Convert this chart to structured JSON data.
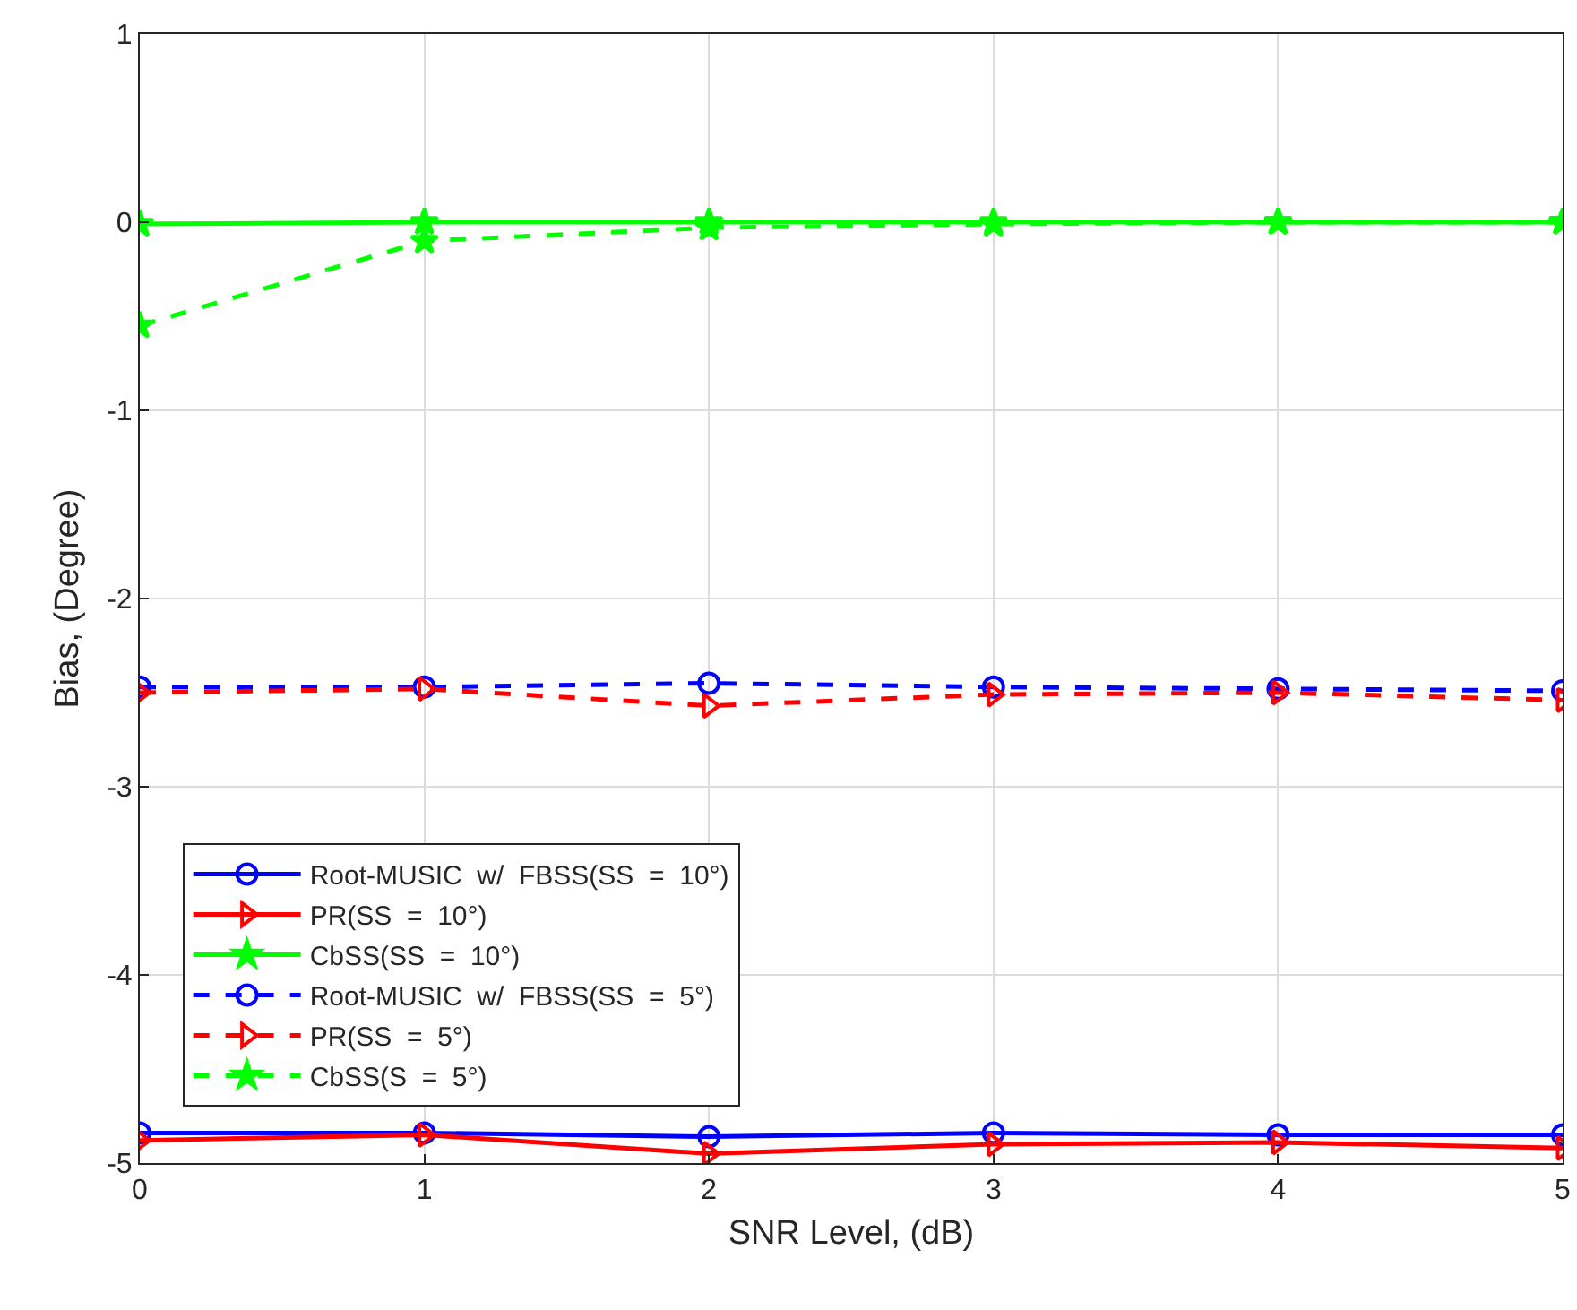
{
  "chart_data": {
    "type": "line",
    "xlabel": "SNR Level, (dB)",
    "ylabel": "Bias, (Degree)",
    "x": [
      0,
      1,
      2,
      3,
      4,
      5
    ],
    "xlim": [
      0,
      5
    ],
    "xticks": [
      0,
      1,
      2,
      3,
      4,
      5
    ],
    "ylim": [
      -5,
      1
    ],
    "yticks": [
      -5,
      -4,
      -3,
      -2,
      -1,
      0,
      1
    ],
    "grid": true,
    "legend": "bottom left",
    "series": [
      {
        "name": "Root-MUSIC  w/  FBSS(SS  =  10°)",
        "color": "#0000ff",
        "marker": "circle",
        "line_style": "solid",
        "values": [
          -4.84,
          -4.84,
          -4.86,
          -4.84,
          -4.85,
          -4.85
        ]
      },
      {
        "name": "PR(SS  =  10°)",
        "color": "#ff0000",
        "marker": "triangle",
        "line_style": "solid",
        "values": [
          -4.88,
          -4.85,
          -4.95,
          -4.9,
          -4.89,
          -4.92
        ]
      },
      {
        "name": "CbSS(SS  =  10°)",
        "color": "#00ff00",
        "marker": "star",
        "line_style": "solid",
        "values": [
          -0.01,
          0,
          0,
          0,
          0,
          0
        ]
      },
      {
        "name": "Root-MUSIC  w/  FBSS(SS  =  5°)",
        "color": "#0000ff",
        "marker": "circle",
        "line_style": "dashed",
        "values": [
          -2.47,
          -2.47,
          -2.45,
          -2.47,
          -2.48,
          -2.49
        ]
      },
      {
        "name": "PR(SS  =  5°)",
        "color": "#ff0000",
        "marker": "triangle",
        "line_style": "dashed",
        "values": [
          -2.5,
          -2.48,
          -2.57,
          -2.51,
          -2.5,
          -2.54
        ]
      },
      {
        "name": "CbSS(S  =  5°)",
        "color": "#00ff00",
        "marker": "star",
        "line_style": "dashed",
        "values": [
          -0.55,
          -0.1,
          -0.03,
          -0.01,
          0,
          0
        ]
      }
    ]
  }
}
